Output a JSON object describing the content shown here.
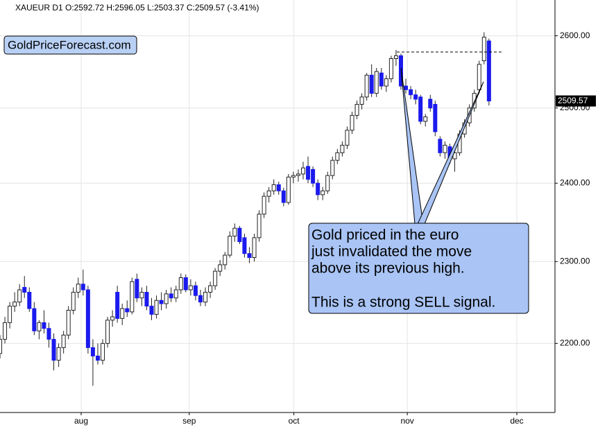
{
  "chart_data": {
    "type": "candlestick",
    "title": "XAUEUR  D1  O:2592.72  H:2596.05  L:2503.37  C:2509.57  (-3.41%)",
    "brand": "GoldPriceForecast.com",
    "callout": [
      "Gold priced in the euro",
      "just invalidated the move",
      "above its previous high.",
      "This is a strong SELL signal."
    ],
    "log_scale": true,
    "grid": true,
    "up_color": "#ffffff",
    "down_color": "#1a1aee",
    "last_price": 2509.57,
    "xlim": [
      0,
      113.5
    ],
    "xticks": [
      {
        "value": 16.6,
        "label": "aug"
      },
      {
        "value": 38.7,
        "label": "sep"
      },
      {
        "value": 60.1,
        "label": "oct"
      },
      {
        "value": 83.3,
        "label": "nov"
      },
      {
        "value": 105.7,
        "label": "dec"
      }
    ],
    "ylim": [
      2119,
      2651
    ],
    "yticks": [
      {
        "value": 2200,
        "label": "2200.00"
      },
      {
        "value": 2300,
        "label": "2300.00"
      },
      {
        "value": 2400,
        "label": "2400.00"
      },
      {
        "value": 2500,
        "label": "2500.00"
      },
      {
        "value": 2600,
        "label": "2600.00"
      }
    ],
    "x": [
      0,
      1,
      2,
      3,
      4,
      5,
      6,
      7,
      8,
      9,
      10,
      11,
      12,
      13,
      14,
      15,
      16,
      17,
      18,
      19,
      20,
      21,
      22,
      23,
      24,
      25,
      26,
      27,
      28,
      29,
      30,
      31,
      32,
      33,
      34,
      35,
      36,
      37,
      38,
      39,
      40,
      41,
      42,
      43,
      44,
      45,
      46,
      47,
      48,
      49,
      50,
      51,
      52,
      53,
      54,
      55,
      56,
      57,
      58,
      59,
      60,
      61,
      62,
      63,
      64,
      65,
      66,
      67,
      68,
      69,
      70,
      71,
      72,
      73,
      74,
      75,
      76,
      77,
      78,
      79,
      80,
      81,
      82,
      83,
      84,
      85,
      86,
      87,
      88,
      89,
      90,
      91,
      92,
      93,
      94,
      95,
      96,
      97,
      98,
      99,
      100
    ],
    "open": [
      2188,
      2205,
      2225,
      2245,
      2250,
      2268,
      2262,
      2242,
      2215,
      2225,
      2218,
      2205,
      2180,
      2195,
      2210,
      2240,
      2262,
      2272,
      2265,
      2195,
      2185,
      2180,
      2200,
      2228,
      2262,
      2230,
      2242,
      2238,
      2278,
      2255,
      2262,
      2245,
      2235,
      2252,
      2248,
      2260,
      2255,
      2265,
      2280,
      2265,
      2270,
      2258,
      2250,
      2262,
      2270,
      2288,
      2296,
      2308,
      2332,
      2342,
      2330,
      2310,
      2305,
      2330,
      2360,
      2383,
      2390,
      2398,
      2390,
      2375,
      2408,
      2410,
      2412,
      2422,
      2418,
      2400,
      2385,
      2390,
      2410,
      2430,
      2440,
      2450,
      2470,
      2490,
      2505,
      2515,
      2545,
      2520,
      2548,
      2530,
      2540,
      2568,
      2572,
      2530,
      2525,
      2518,
      2515,
      2482,
      2512,
      2505,
      2458,
      2440,
      2448,
      2432,
      2440,
      2465,
      2480,
      2500,
      2525,
      2565,
      2592.72
    ],
    "high": [
      2210,
      2232,
      2250,
      2262,
      2272,
      2282,
      2268,
      2250,
      2228,
      2240,
      2225,
      2212,
      2200,
      2215,
      2245,
      2268,
      2280,
      2290,
      2270,
      2205,
      2200,
      2205,
      2232,
      2240,
      2270,
      2248,
      2252,
      2280,
      2285,
      2268,
      2270,
      2255,
      2258,
      2262,
      2265,
      2268,
      2270,
      2285,
      2284,
      2278,
      2275,
      2265,
      2268,
      2275,
      2292,
      2302,
      2312,
      2338,
      2348,
      2345,
      2335,
      2318,
      2335,
      2365,
      2388,
      2395,
      2405,
      2402,
      2394,
      2412,
      2415,
      2418,
      2428,
      2435,
      2422,
      2405,
      2395,
      2415,
      2435,
      2445,
      2455,
      2475,
      2495,
      2510,
      2520,
      2548,
      2560,
      2555,
      2555,
      2545,
      2572,
      2580,
      2575,
      2540,
      2530,
      2525,
      2518,
      2492,
      2518,
      2510,
      2462,
      2455,
      2452,
      2445,
      2470,
      2485,
      2505,
      2525,
      2565,
      2605,
      2596.05
    ],
    "low": [
      2182,
      2200,
      2218,
      2238,
      2245,
      2255,
      2238,
      2210,
      2205,
      2212,
      2195,
      2168,
      2172,
      2188,
      2205,
      2235,
      2255,
      2258,
      2188,
      2150,
      2175,
      2175,
      2195,
      2220,
      2225,
      2222,
      2232,
      2235,
      2250,
      2245,
      2240,
      2228,
      2230,
      2240,
      2242,
      2250,
      2250,
      2260,
      2262,
      2258,
      2252,
      2245,
      2245,
      2255,
      2265,
      2282,
      2290,
      2305,
      2325,
      2322,
      2305,
      2298,
      2300,
      2325,
      2355,
      2375,
      2385,
      2385,
      2370,
      2372,
      2400,
      2402,
      2405,
      2400,
      2395,
      2378,
      2378,
      2386,
      2405,
      2425,
      2435,
      2445,
      2465,
      2485,
      2498,
      2510,
      2515,
      2515,
      2525,
      2522,
      2535,
      2558,
      2525,
      2520,
      2512,
      2505,
      2478,
      2475,
      2495,
      2462,
      2435,
      2432,
      2425,
      2415,
      2436,
      2460,
      2475,
      2495,
      2520,
      2560,
      2503.37
    ],
    "close": [
      2205,
      2225,
      2245,
      2250,
      2265,
      2262,
      2242,
      2215,
      2225,
      2218,
      2205,
      2180,
      2195,
      2210,
      2240,
      2262,
      2272,
      2265,
      2195,
      2185,
      2180,
      2200,
      2228,
      2232,
      2230,
      2242,
      2238,
      2275,
      2255,
      2262,
      2245,
      2235,
      2252,
      2248,
      2260,
      2255,
      2265,
      2280,
      2265,
      2270,
      2258,
      2250,
      2262,
      2270,
      2288,
      2296,
      2308,
      2332,
      2342,
      2325,
      2310,
      2305,
      2330,
      2360,
      2383,
      2390,
      2398,
      2390,
      2375,
      2408,
      2410,
      2412,
      2420,
      2405,
      2400,
      2385,
      2390,
      2410,
      2430,
      2440,
      2450,
      2470,
      2490,
      2505,
      2515,
      2545,
      2520,
      2550,
      2530,
      2540,
      2568,
      2572,
      2530,
      2525,
      2518,
      2512,
      2482,
      2488,
      2500,
      2468,
      2440,
      2450,
      2432,
      2440,
      2465,
      2480,
      2500,
      2520,
      2560,
      2598,
      2509.57
    ]
  }
}
